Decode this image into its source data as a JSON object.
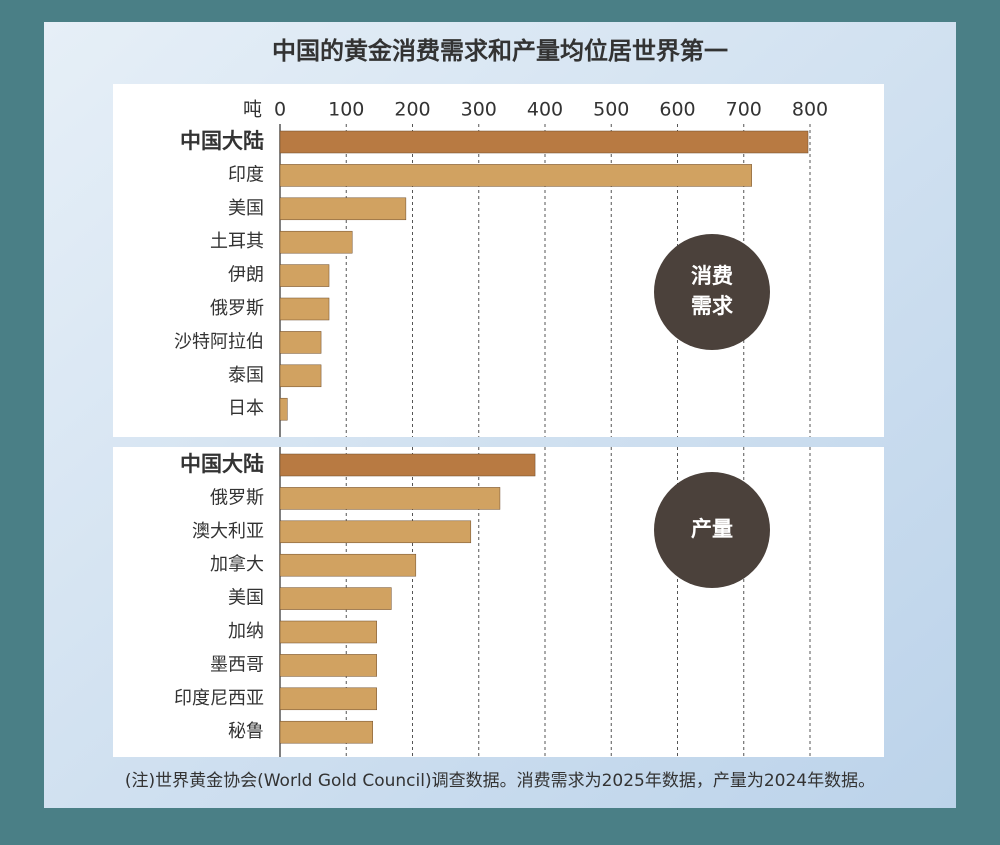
{
  "title": "中国的黄金消费需求和产量均位居世界第一",
  "note": "(注)世界黄金协会(World Gold Council)调查数据。消费需求为2025年数据，产量为2024年数据。",
  "chart_data": [
    {
      "type": "barh",
      "label_lines": [
        "消费",
        "需求"
      ],
      "x_unit": "吨",
      "categories": [
        "中国大陆",
        "印度",
        "美国",
        "土耳其",
        "伊朗",
        "俄罗斯",
        "沙特阿拉伯",
        "泰国",
        "日本"
      ],
      "values": [
        797,
        712,
        190,
        109,
        74,
        74,
        62,
        62,
        11
      ],
      "colors": [
        "#b87a42",
        "#d1a261",
        "#d1a261",
        "#d1a261",
        "#d1a261",
        "#d1a261",
        "#d1a261",
        "#d1a261",
        "#d1a261"
      ],
      "xlim": [
        0,
        800
      ],
      "xticks": [
        0,
        100,
        200,
        300,
        400,
        500,
        600,
        700,
        800
      ],
      "grid": true,
      "tick_labels": true
    },
    {
      "type": "barh",
      "label_lines": [
        "产量"
      ],
      "categories": [
        "中国大陆",
        "俄罗斯",
        "澳大利亚",
        "加拿大",
        "美国",
        "加纳",
        "墨西哥",
        "印度尼西亚",
        "秘鲁"
      ],
      "values": [
        385,
        332,
        288,
        205,
        168,
        146,
        146,
        146,
        140
      ],
      "colors": [
        "#b87a42",
        "#d1a261",
        "#d1a261",
        "#d1a261",
        "#d1a261",
        "#d1a261",
        "#d1a261",
        "#d1a261",
        "#d1a261"
      ],
      "xlim": [
        0,
        800
      ],
      "xticks": [
        0,
        100,
        200,
        300,
        400,
        500,
        600,
        700,
        800
      ],
      "grid": true,
      "tick_labels": false
    }
  ]
}
